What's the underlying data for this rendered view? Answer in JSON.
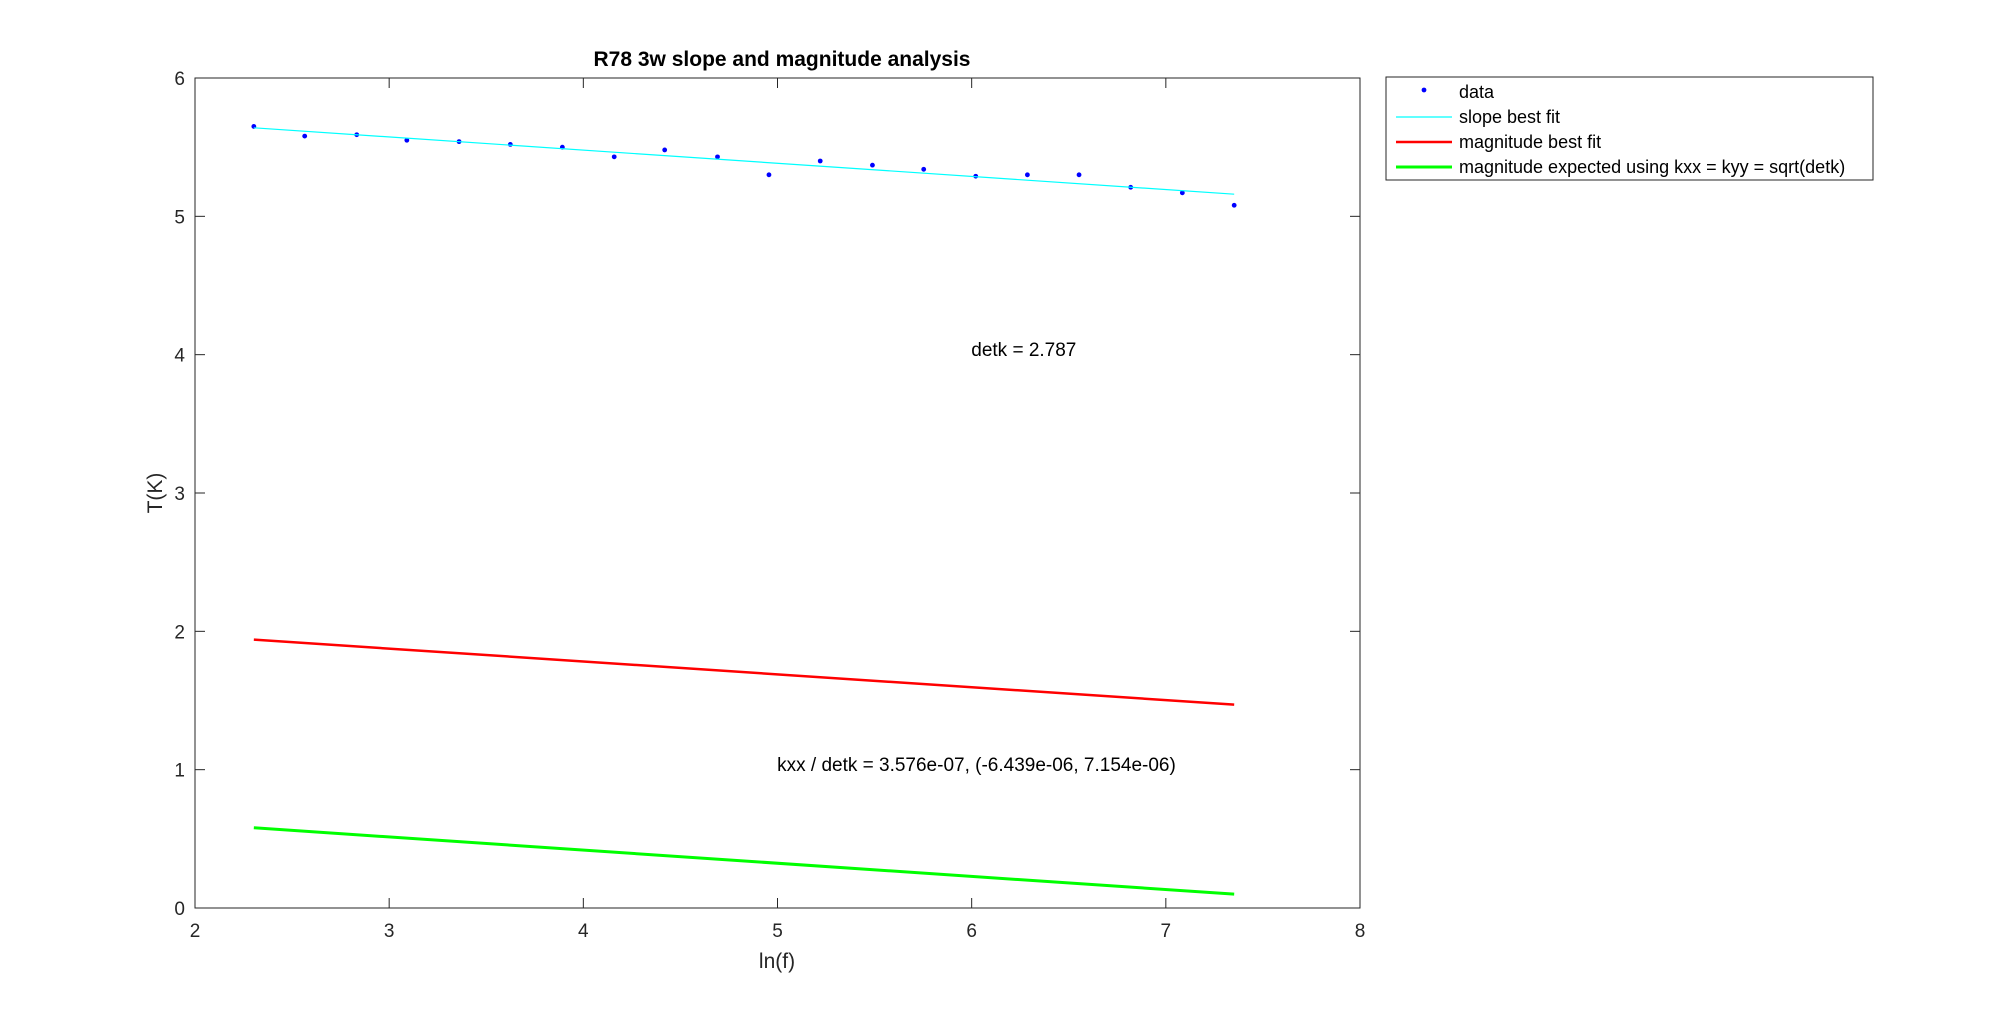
{
  "chart_data": {
    "type": "line",
    "title": "R78 3w slope and magnitude analysis",
    "xlabel": "ln(f)",
    "ylabel": "T(K)",
    "xlim": [
      2,
      8
    ],
    "ylim": [
      0,
      6
    ],
    "xticks": [
      "2",
      "3",
      "4",
      "5",
      "6",
      "7",
      "8"
    ],
    "yticks": [
      "0",
      "1",
      "2",
      "3",
      "4",
      "5",
      "6"
    ],
    "grid": false,
    "legend_position": "outside-top-right",
    "series": [
      {
        "name": "data",
        "style": "markers",
        "color": "#0000ff",
        "x": [
          2.303,
          2.565,
          2.833,
          3.091,
          3.36,
          3.624,
          3.892,
          4.159,
          4.419,
          4.691,
          4.956,
          5.22,
          5.489,
          5.753,
          6.021,
          6.287,
          6.553,
          6.819,
          7.085,
          7.352
        ],
        "y": [
          5.65,
          5.58,
          5.59,
          5.55,
          5.54,
          5.52,
          5.5,
          5.43,
          5.48,
          5.43,
          5.3,
          5.4,
          5.37,
          5.34,
          5.29,
          5.3,
          5.3,
          5.21,
          5.17,
          5.08
        ]
      },
      {
        "name": "slope best fit",
        "style": "line",
        "color": "#00ffff",
        "x": [
          2.303,
          7.352
        ],
        "y": [
          5.64,
          5.16
        ]
      },
      {
        "name": "magnitude best fit",
        "style": "line",
        "color": "#ff0000",
        "x": [
          2.303,
          7.352
        ],
        "y": [
          1.94,
          1.47
        ]
      },
      {
        "name": "magnitude expected using kxx = kyy = sqrt(detk)",
        "style": "line",
        "color": "#00ff00",
        "x": [
          2.303,
          7.352
        ],
        "y": [
          0.58,
          0.1
        ]
      }
    ],
    "annotations": [
      {
        "text": "detk = 2.787",
        "x": 5.998,
        "y": 3.99
      },
      {
        "text": "kxx / detk = 3.576e-07, (-6.439e-06, 7.154e-06)",
        "x": 4.998,
        "y": 0.99
      }
    ]
  }
}
